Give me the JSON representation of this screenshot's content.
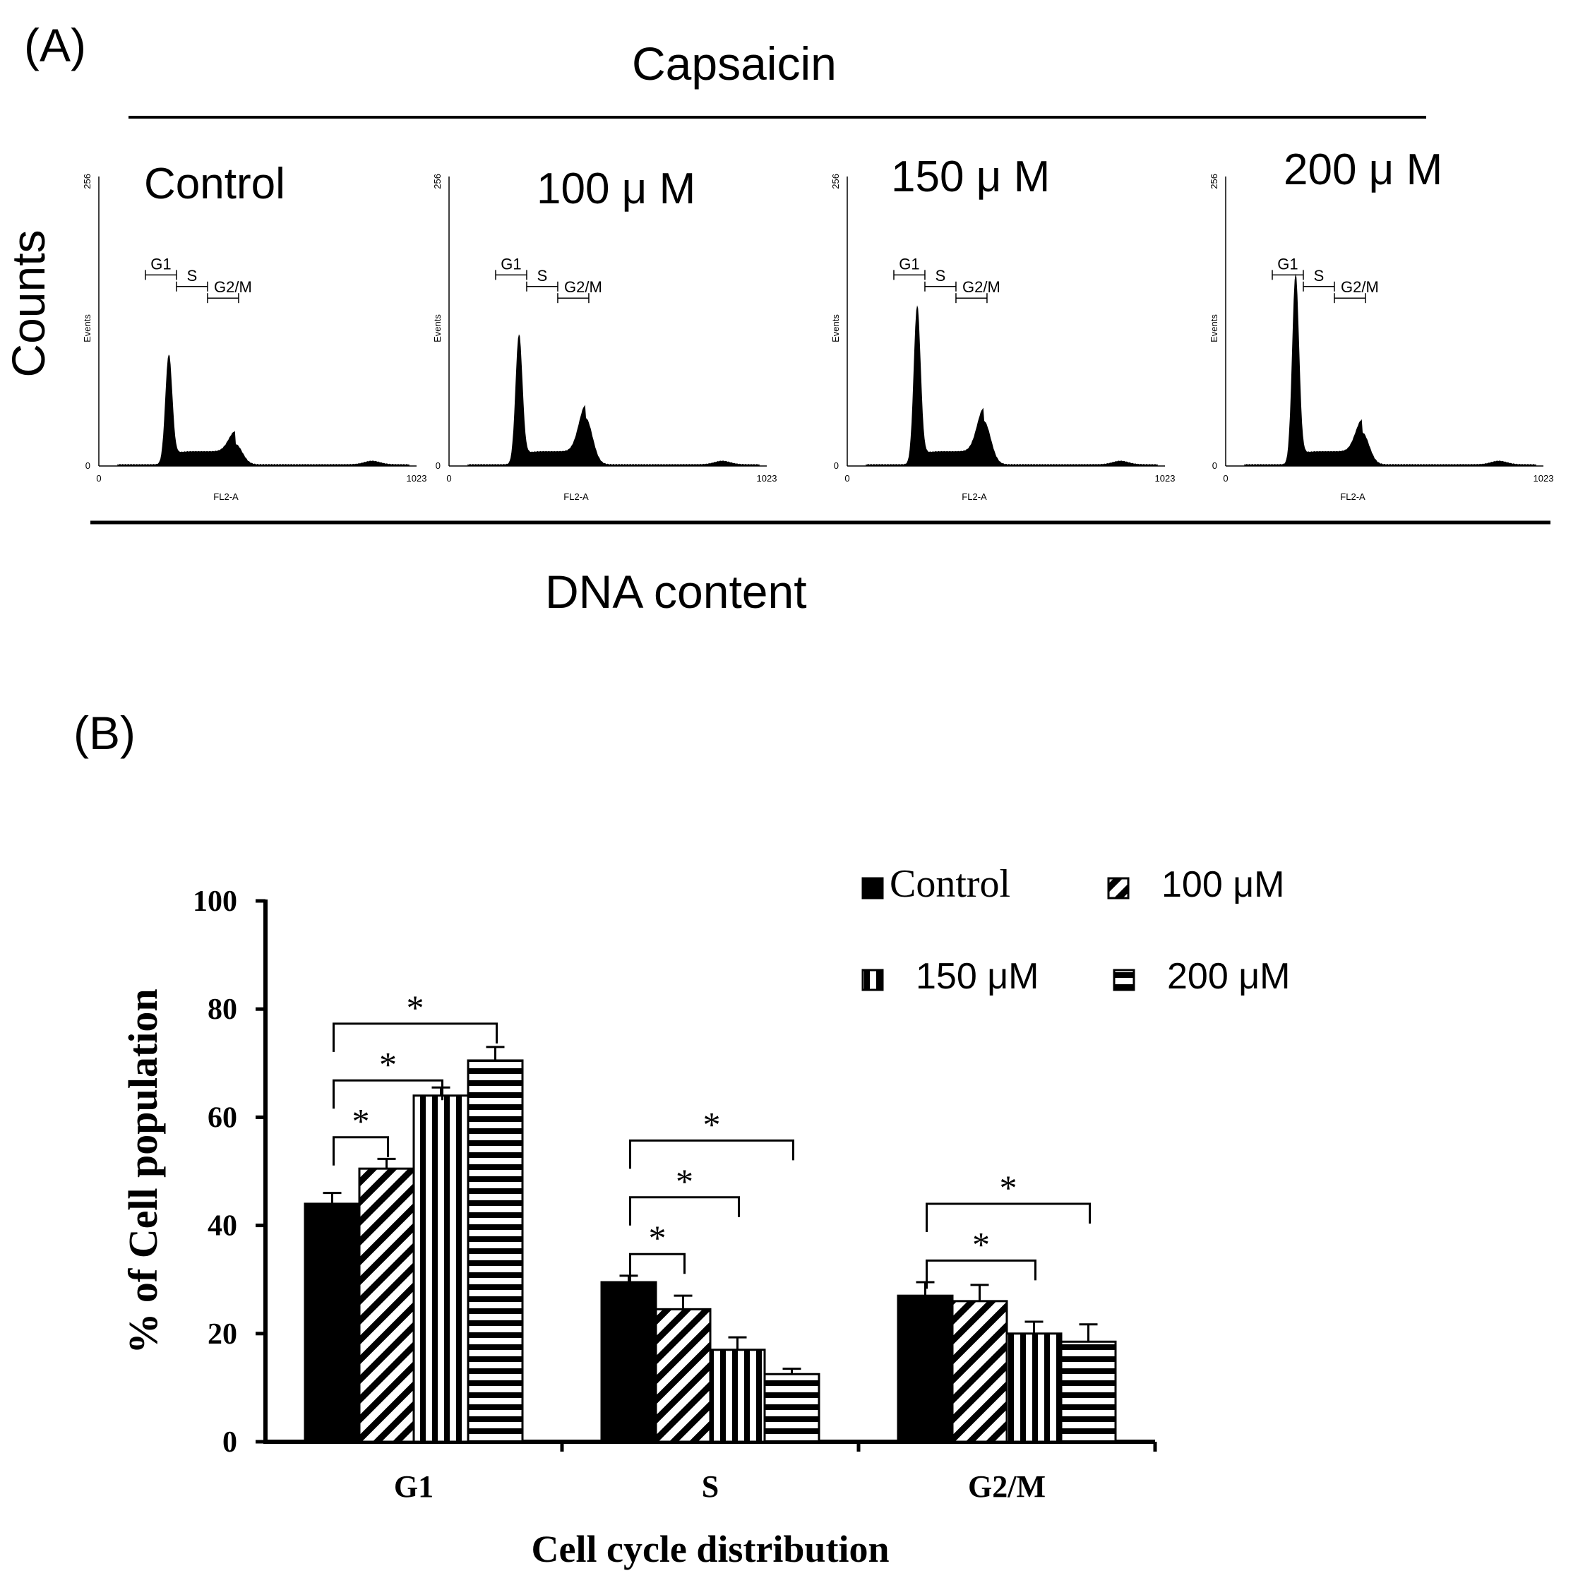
{
  "panel_a": {
    "label": "(A)",
    "treatment_title": "Capsaicin",
    "y_label": "Counts",
    "x_label": "DNA content",
    "histograms": [
      {
        "title": "Control",
        "y_max": "256",
        "y_axis": "Events",
        "x_min": "0",
        "x_max": "1023",
        "x_axis": "FL2-A",
        "gates": [
          "G1",
          "S",
          "G2/M"
        ],
        "g1_peak": 0.38,
        "g2_peak": 0.07,
        "g2_channel": 440
      },
      {
        "title": "100 μ M",
        "y_max": "256",
        "y_axis": "Events",
        "x_min": "0",
        "x_max": "1023",
        "x_axis": "FL2-A",
        "gates": [
          "G1",
          "S",
          "G2/M"
        ],
        "g1_peak": 0.45,
        "g2_peak": 0.16,
        "g2_channel": 440
      },
      {
        "title": "150 μ M",
        "y_max": "256",
        "y_axis": "Events",
        "x_min": "0",
        "x_max": "1023",
        "x_axis": "FL2-A",
        "gates": [
          "G1",
          "S",
          "G2/M"
        ],
        "g1_peak": 0.55,
        "g2_peak": 0.15,
        "g2_channel": 440
      },
      {
        "title": "200 μ M",
        "y_max": "256",
        "y_axis": "Events",
        "x_min": "0",
        "x_max": "1023",
        "x_axis": "FL2-A",
        "gates": [
          "G1",
          "S",
          "G2/M"
        ],
        "g1_peak": 0.66,
        "g2_peak": 0.11,
        "g2_channel": 440
      }
    ]
  },
  "chart_data": {
    "type": "bar",
    "panel_label": "(B)",
    "title": "",
    "xlabel": "Cell cycle distribution",
    "ylabel": "% of Cell population",
    "ylim": [
      0,
      100
    ],
    "yticks": [
      0,
      20,
      40,
      60,
      80,
      100
    ],
    "categories": [
      "G1",
      "S",
      "G2/M"
    ],
    "series": [
      {
        "name": "Control",
        "pattern": "solid",
        "values": [
          44,
          29.5,
          27
        ],
        "errors": [
          2,
          1.2,
          2.5
        ]
      },
      {
        "name": "100 μM",
        "pattern": "diagonal",
        "values": [
          50.5,
          24.5,
          26
        ],
        "errors": [
          1.8,
          2.5,
          3
        ]
      },
      {
        "name": "150 μM",
        "pattern": "vertical",
        "values": [
          64,
          17,
          20
        ],
        "errors": [
          1.5,
          2.3,
          2.2
        ]
      },
      {
        "name": "200 μM",
        "pattern": "horizontal",
        "values": [
          70.5,
          12.5,
          18.5
        ],
        "errors": [
          2.5,
          1,
          3.2
        ]
      }
    ],
    "significance": [
      {
        "category": 0,
        "from": 0,
        "to": 1,
        "label": "*"
      },
      {
        "category": 0,
        "from": 0,
        "to": 2,
        "label": "*"
      },
      {
        "category": 0,
        "from": 0,
        "to": 3,
        "label": "*"
      },
      {
        "category": 1,
        "from": 0,
        "to": 1,
        "label": "*"
      },
      {
        "category": 1,
        "from": 0,
        "to": 2,
        "label": "*"
      },
      {
        "category": 1,
        "from": 0,
        "to": 3,
        "label": "*"
      },
      {
        "category": 2,
        "from": 0,
        "to": 2,
        "label": "*"
      },
      {
        "category": 2,
        "from": 0,
        "to": 3,
        "label": "*"
      }
    ],
    "legend_position": "top-right"
  },
  "colors": {
    "ink": "#000000",
    "background": "#ffffff"
  }
}
